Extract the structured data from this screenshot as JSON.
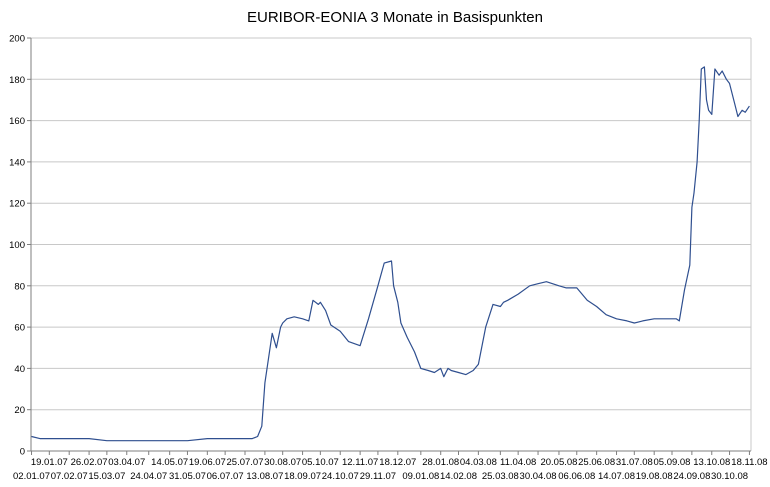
{
  "chart_data": {
    "type": "line",
    "title": "EURIBOR-EONIA 3 Monate in Basispunkten",
    "xlabel": "",
    "ylabel": "",
    "ylim": [
      0,
      200
    ],
    "yticks": [
      0,
      20,
      40,
      60,
      80,
      100,
      120,
      140,
      160,
      180,
      200
    ],
    "grid": true,
    "legend": "none",
    "line_color": "#2f4f8f",
    "x_start": "02.01.07",
    "x_end": "18.11.08",
    "x_tick_labels": [
      "02.01.07",
      "19.01.07",
      "07.02.07",
      "26.02.07",
      "15.03.07",
      "03.04.07",
      "24.04.07",
      "14.05.07",
      "31.05.07",
      "19.06.07",
      "06.07.07",
      "25.07.07",
      "13.08.07",
      "30.08.07",
      "18.09.07",
      "05.10.07",
      "24.10.07",
      "12.11.07",
      "29.11.07",
      "18.12.07",
      "09.01.08",
      "28.01.08",
      "14.02.08",
      "04.03.08",
      "25.03.08",
      "11.04.08",
      "30.04.08",
      "20.05.08",
      "06.06.08",
      "25.06.08",
      "14.07.08",
      "31.07.08",
      "19.08.08",
      "05.09.08",
      "24.09.08",
      "13.10.08",
      "30.10.08",
      "18.11.08"
    ],
    "series": [
      {
        "x": [
          "02.01.07",
          "10.01.07",
          "19.01.07",
          "07.02.07",
          "26.02.07",
          "15.03.07",
          "03.04.07",
          "24.04.07",
          "14.05.07",
          "31.05.07",
          "19.06.07",
          "06.07.07",
          "25.07.07",
          "01.08.07",
          "06.08.07",
          "10.08.07",
          "13.08.07",
          "20.08.07",
          "24.08.07",
          "28.08.07",
          "30.08.07",
          "03.09.07",
          "10.09.07",
          "18.09.07",
          "24.09.07",
          "28.09.07",
          "03.10.07",
          "05.10.07",
          "10.10.07",
          "15.10.07",
          "24.10.07",
          "01.11.07",
          "12.11.07",
          "20.11.07",
          "29.11.07",
          "05.12.07",
          "12.12.07",
          "14.12.07",
          "18.12.07",
          "21.12.07",
          "27.12.07",
          "03.01.08",
          "09.01.08",
          "16.01.08",
          "22.01.08",
          "28.01.08",
          "31.01.08",
          "04.02.08",
          "07.02.08",
          "14.02.08",
          "21.02.08",
          "28.02.08",
          "04.03.08",
          "11.03.08",
          "18.03.08",
          "25.03.08",
          "28.03.08",
          "01.04.08",
          "11.04.08",
          "22.04.08",
          "30.04.08",
          "08.05.08",
          "20.05.08",
          "27.05.08",
          "06.06.08",
          "16.06.08",
          "25.06.08",
          "04.07.08",
          "14.07.08",
          "24.07.08",
          "31.07.08",
          "08.08.08",
          "19.08.08",
          "28.08.08",
          "05.09.08",
          "09.09.08",
          "12.09.08",
          "17.09.08",
          "22.09.08",
          "24.09.08",
          "26.09.08",
          "29.09.08",
          "01.10.08",
          "03.10.08",
          "06.10.08",
          "08.10.08",
          "10.10.08",
          "13.10.08",
          "16.10.08",
          "20.10.08",
          "23.10.08",
          "27.10.08",
          "30.10.08",
          "04.11.08",
          "07.11.08",
          "11.11.08",
          "14.11.08",
          "18.11.08"
        ],
        "values": [
          7,
          6,
          6,
          6,
          6,
          5,
          5,
          5,
          5,
          5,
          6,
          6,
          6,
          6,
          7,
          12,
          33,
          57,
          50,
          60,
          62,
          64,
          65,
          64,
          63,
          73,
          71,
          72,
          68,
          61,
          58,
          53,
          51,
          64,
          80,
          91,
          92,
          80,
          72,
          62,
          55,
          48,
          40,
          39,
          38,
          40,
          36,
          40,
          39,
          38,
          37,
          39,
          42,
          60,
          71,
          70,
          72,
          73,
          76,
          80,
          81,
          82,
          80,
          79,
          79,
          73,
          70,
          66,
          64,
          63,
          62,
          63,
          64,
          64,
          64,
          64,
          63,
          78,
          90,
          118,
          125,
          140,
          160,
          185,
          186,
          170,
          165,
          163,
          185,
          182,
          184,
          180,
          178,
          168,
          162,
          165,
          164,
          167
        ]
      }
    ]
  }
}
